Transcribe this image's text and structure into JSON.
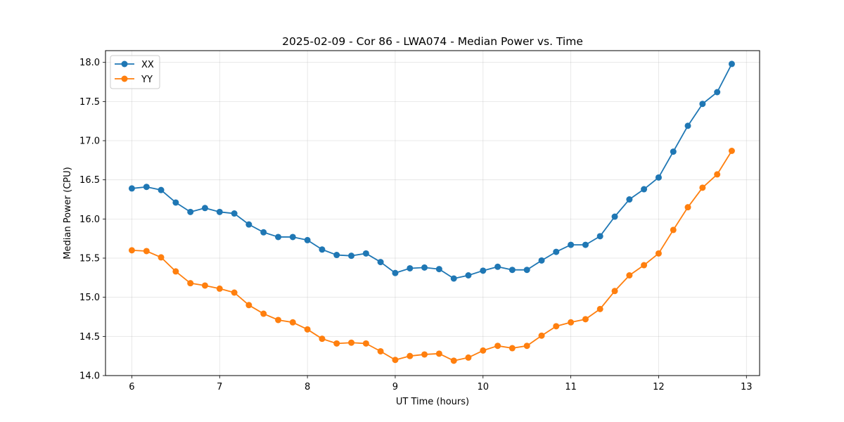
{
  "chart_data": {
    "type": "line",
    "title": "2025-02-09 - Cor 86 - LWA074 - Median Power vs. Time",
    "xlabel": "UT Time (hours)",
    "ylabel": "Median Power (CPU)",
    "xlim": [
      5.7,
      13.15
    ],
    "ylim": [
      14.0,
      18.15
    ],
    "xticks": [
      6,
      7,
      8,
      9,
      10,
      11,
      12,
      13
    ],
    "yticks": [
      14.0,
      14.5,
      15.0,
      15.5,
      16.0,
      16.5,
      17.0,
      17.5,
      18.0
    ],
    "xtick_labels": [
      "6",
      "7",
      "8",
      "9",
      "10",
      "11",
      "12",
      "13"
    ],
    "ytick_labels": [
      "14.0",
      "14.5",
      "15.0",
      "15.5",
      "16.0",
      "16.5",
      "17.0",
      "17.5",
      "18.0"
    ],
    "grid": true,
    "legend_position": "top-left",
    "x": [
      6.0,
      6.167,
      6.333,
      6.5,
      6.667,
      6.833,
      7.0,
      7.167,
      7.333,
      7.5,
      7.667,
      7.833,
      8.0,
      8.167,
      8.333,
      8.5,
      8.667,
      8.833,
      9.0,
      9.167,
      9.333,
      9.5,
      9.667,
      9.833,
      10.0,
      10.167,
      10.333,
      10.5,
      10.667,
      10.833,
      11.0,
      11.167,
      11.333,
      11.5,
      11.667,
      11.833,
      12.0,
      12.167,
      12.333,
      12.5,
      12.667,
      12.833
    ],
    "series": [
      {
        "name": "XX",
        "color": "#1f77b4",
        "values": [
          16.39,
          16.41,
          16.37,
          16.21,
          16.09,
          16.14,
          16.09,
          16.07,
          15.93,
          15.83,
          15.77,
          15.77,
          15.73,
          15.61,
          15.54,
          15.53,
          15.56,
          15.45,
          15.31,
          15.37,
          15.38,
          15.36,
          15.24,
          15.28,
          15.34,
          15.39,
          15.35,
          15.35,
          15.47,
          15.58,
          15.67,
          15.67,
          15.78,
          16.03,
          16.25,
          16.38,
          16.53,
          16.86,
          17.19,
          17.47,
          17.62,
          17.98
        ]
      },
      {
        "name": "YY",
        "color": "#ff7f0e",
        "values": [
          15.6,
          15.59,
          15.51,
          15.33,
          15.18,
          15.15,
          15.11,
          15.06,
          14.9,
          14.79,
          14.71,
          14.68,
          14.59,
          14.47,
          14.41,
          14.42,
          14.41,
          14.31,
          14.2,
          14.25,
          14.27,
          14.28,
          14.19,
          14.23,
          14.32,
          14.38,
          14.35,
          14.38,
          14.51,
          14.63,
          14.68,
          14.72,
          14.85,
          15.08,
          15.28,
          15.41,
          15.56,
          15.86,
          16.15,
          16.4,
          16.57,
          16.87
        ]
      }
    ]
  }
}
